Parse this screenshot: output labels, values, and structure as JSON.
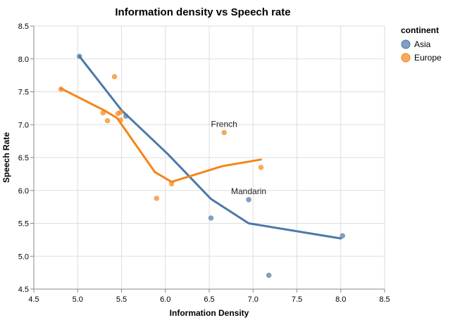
{
  "chart_data": {
    "type": "scatter",
    "title": "Information density vs Speech rate",
    "xlabel": "Information Density",
    "ylabel": "Speech Rate",
    "xlim": [
      4.5,
      8.5
    ],
    "ylim": [
      4.5,
      8.5
    ],
    "x_ticks": [
      "4.5",
      "5.0",
      "5.5",
      "6.0",
      "6.5",
      "7.0",
      "7.5",
      "8.0",
      "8.5"
    ],
    "y_ticks": [
      "4.5",
      "5.0",
      "5.5",
      "6.0",
      "6.5",
      "7.0",
      "7.5",
      "8.0",
      "8.5"
    ],
    "grid": true,
    "legend": {
      "title": "continent",
      "position": "right",
      "entries": [
        {
          "name": "Asia",
          "color": "#4c78a8"
        },
        {
          "name": "Europe",
          "color": "#f58518"
        }
      ]
    },
    "series": [
      {
        "name": "Asia",
        "color": "#4c78a8",
        "points": [
          [
            5.02,
            8.04
          ],
          [
            5.55,
            7.13
          ],
          [
            6.52,
            5.58
          ],
          [
            6.95,
            5.86
          ],
          [
            7.18,
            4.71
          ],
          [
            8.02,
            5.31
          ]
        ],
        "trend": [
          [
            5.02,
            8.04
          ],
          [
            5.5,
            7.22
          ],
          [
            6.03,
            6.55
          ],
          [
            6.52,
            5.87
          ],
          [
            6.95,
            5.5
          ],
          [
            8.0,
            5.27
          ]
        ]
      },
      {
        "name": "Europe",
        "color": "#f58518",
        "points": [
          [
            4.81,
            7.54
          ],
          [
            5.29,
            7.18
          ],
          [
            5.34,
            7.06
          ],
          [
            5.42,
            7.73
          ],
          [
            5.46,
            7.17
          ],
          [
            5.49,
            7.19
          ],
          [
            5.49,
            7.07
          ],
          [
            5.9,
            5.88
          ],
          [
            6.07,
            6.1
          ],
          [
            6.67,
            6.88
          ],
          [
            7.09,
            6.35
          ]
        ],
        "trend": [
          [
            4.81,
            7.55
          ],
          [
            5.3,
            7.22
          ],
          [
            5.45,
            7.1
          ],
          [
            5.88,
            6.28
          ],
          [
            6.07,
            6.13
          ],
          [
            6.65,
            6.37
          ],
          [
            7.09,
            6.47
          ]
        ]
      }
    ],
    "annotations": [
      {
        "text": "French",
        "x": 6.67,
        "y": 6.88
      },
      {
        "text": "Mandarin",
        "x": 6.95,
        "y": 5.86
      }
    ]
  }
}
